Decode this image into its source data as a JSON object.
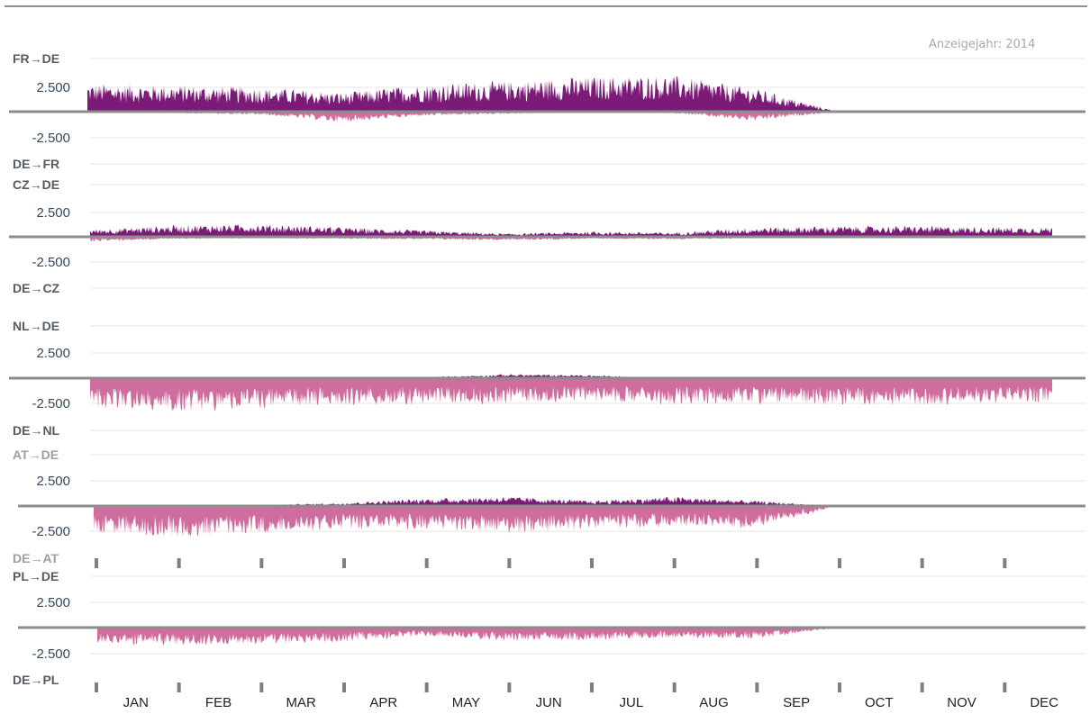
{
  "chart_data": {
    "type": "area",
    "year_label": "Anzeigejahr: 2014",
    "months": [
      "JAN",
      "FEB",
      "MAR",
      "APR",
      "MAY",
      "JUN",
      "JUL",
      "AUG",
      "SEP",
      "OCT",
      "NOV",
      "DEC"
    ],
    "colors": {
      "import": "#7b1a77",
      "export": "#cf6e9e",
      "zero": "#8c8c8c",
      "grid": "#e5e5e5"
    },
    "ylim": [
      -2500,
      2500
    ],
    "panels": [
      {
        "top_label": "FR→DE",
        "bottom_label": "DE→FR",
        "ytick_top": "2.500",
        "ytick_bottom": "-2.500",
        "pos_monthly": [
          2600,
          2500,
          2300,
          1800,
          2600,
          2900,
          3300,
          3400,
          2200,
          0,
          0,
          0
        ],
        "neg_monthly": [
          -100,
          -150,
          -300,
          -1000,
          -400,
          -200,
          -100,
          -150,
          -900,
          0,
          0,
          0
        ],
        "data_end": 9.3
      },
      {
        "top_label": "CZ→DE",
        "bottom_label": "DE→CZ",
        "ytick_top": "2.500",
        "ytick_bottom": "-2.500",
        "pos_monthly": [
          700,
          1100,
          1200,
          900,
          600,
          300,
          500,
          400,
          900,
          1000,
          1000,
          900
        ],
        "neg_monthly": [
          -450,
          -200,
          -150,
          -200,
          -250,
          -350,
          -200,
          -250,
          -150,
          -100,
          -100,
          -100
        ],
        "data_end": 11.6
      },
      {
        "top_label": "NL→DE",
        "bottom_label": "DE→NL",
        "ytick_top": "2.500",
        "ytick_bottom": "-2.500",
        "pos_monthly": [
          0,
          0,
          0,
          0,
          100,
          400,
          300,
          0,
          0,
          0,
          0,
          0
        ],
        "neg_monthly": [
          -2800,
          -3200,
          -2900,
          -2600,
          -2500,
          -2400,
          -2200,
          -2500,
          -2400,
          -2500,
          -2600,
          -2300
        ],
        "data_end": 11.6
      },
      {
        "top_label": "AT→DE",
        "bottom_label": "DE→AT",
        "ytick_top": "2.500",
        "ytick_bottom": "-2.500",
        "pos_monthly": [
          0,
          0,
          100,
          300,
          700,
          900,
          500,
          900,
          500,
          0,
          0,
          0
        ],
        "neg_monthly": [
          -2600,
          -2900,
          -2600,
          -2300,
          -2200,
          -2700,
          -2200,
          -2000,
          -2100,
          0,
          0,
          0
        ],
        "data_end": 9.3
      },
      {
        "top_label": "PL→DE",
        "bottom_label": "DE→PL",
        "ytick_top": "2.500",
        "ytick_bottom": "-2.500",
        "pos_monthly": [
          0,
          0,
          0,
          0,
          150,
          0,
          0,
          0,
          0,
          0,
          0,
          0
        ],
        "neg_monthly": [
          -1600,
          -1700,
          -1500,
          -1400,
          -800,
          -1300,
          -1200,
          -1000,
          -1100,
          0,
          0,
          0
        ],
        "data_end": 9.3
      }
    ]
  }
}
